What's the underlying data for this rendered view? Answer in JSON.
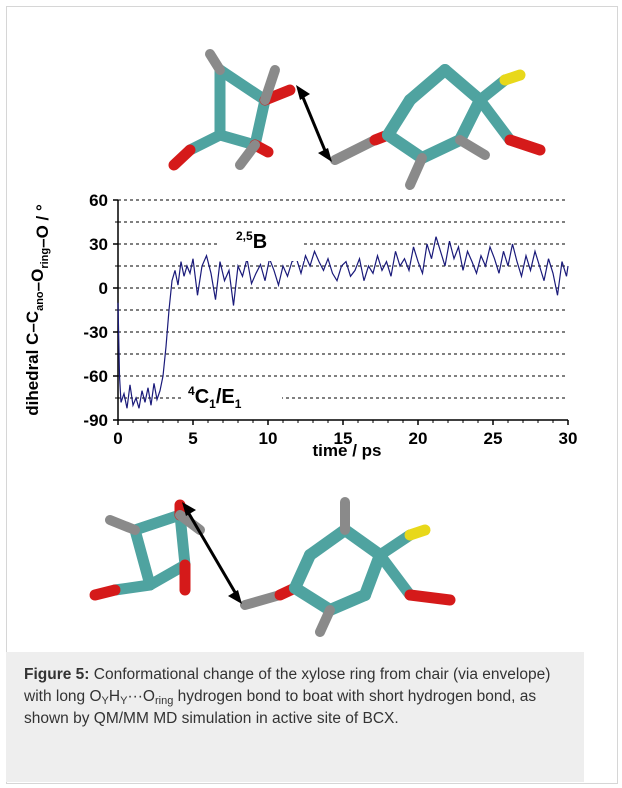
{
  "figure": {
    "caption_label": "Figure 5:",
    "caption_parts": {
      "t1": " Conformational change of the xylose ring from chair (via envelope) with long O",
      "s1": "Y",
      "t2": "H",
      "s2": "Y",
      "t3": "···O",
      "s3": "ring",
      "t4": " hydrogen bond to boat with short hydrogen bond, as shown by QM/MM MD simulation in active site of BCX."
    }
  },
  "chart_data": {
    "type": "line",
    "xlabel": "time / ps",
    "ylabel": "dihedral C–C_ano–O_ring–O / °",
    "xlim": [
      0,
      30
    ],
    "ylim": [
      -90,
      60
    ],
    "xticks": [
      0,
      5,
      10,
      15,
      20,
      25,
      30
    ],
    "yticks": [
      60,
      30,
      0,
      -30,
      -60,
      -90
    ],
    "grid_dashed_y": [
      60,
      45,
      30,
      15,
      0,
      -15,
      -30,
      -45,
      -60,
      -75,
      -90
    ],
    "annotations": [
      {
        "text": "2,5B",
        "at": "upper"
      },
      {
        "text": "4C1/E1",
        "at": "lower"
      }
    ],
    "series": [
      {
        "x": [
          0,
          0.1,
          0.2,
          0.4,
          0.6,
          0.8,
          1.0,
          1.2,
          1.4,
          1.6,
          1.8,
          2.0,
          2.2,
          2.4,
          2.6,
          2.8,
          3.0,
          3.2,
          3.4,
          3.6,
          3.8,
          4.0,
          4.2,
          4.4,
          4.6,
          4.8,
          5.0,
          5.3,
          5.6,
          5.9,
          6.2,
          6.5,
          6.8,
          7.1,
          7.4,
          7.7,
          8.0,
          8.3,
          8.6,
          8.9,
          9.2,
          9.5,
          9.8,
          10.1,
          10.4,
          10.7,
          11.0,
          11.3,
          11.6,
          11.9,
          12.2,
          12.5,
          12.8,
          13.1,
          13.4,
          13.7,
          14.0,
          14.3,
          14.6,
          14.9,
          15.2,
          15.5,
          15.8,
          16.1,
          16.4,
          16.7,
          17.0,
          17.3,
          17.6,
          17.9,
          18.2,
          18.5,
          18.8,
          19.1,
          19.4,
          19.7,
          20.0,
          20.3,
          20.6,
          20.9,
          21.2,
          21.5,
          21.8,
          22.1,
          22.4,
          22.7,
          23.0,
          23.3,
          23.6,
          23.9,
          24.2,
          24.5,
          24.8,
          25.1,
          25.4,
          25.7,
          26.0,
          26.3,
          26.6,
          26.9,
          27.2,
          27.5,
          27.8,
          28.1,
          28.4,
          28.7,
          29.0,
          29.3,
          29.6,
          29.9,
          30.0
        ],
        "values": [
          -10,
          -60,
          -78,
          -72,
          -82,
          -66,
          -80,
          -75,
          -82,
          -70,
          -78,
          -68,
          -80,
          -65,
          -76,
          -70,
          -60,
          -40,
          -15,
          5,
          12,
          2,
          18,
          8,
          15,
          10,
          20,
          -5,
          15,
          22,
          10,
          -8,
          18,
          5,
          12,
          -12,
          15,
          8,
          20,
          3,
          10,
          16,
          5,
          20,
          12,
          2,
          15,
          8,
          18,
          20,
          10,
          22,
          15,
          25,
          18,
          12,
          20,
          10,
          5,
          15,
          18,
          8,
          12,
          20,
          5,
          15,
          10,
          22,
          12,
          18,
          8,
          25,
          15,
          20,
          12,
          28,
          18,
          10,
          30,
          20,
          35,
          25,
          15,
          32,
          20,
          28,
          12,
          25,
          18,
          10,
          22,
          15,
          28,
          20,
          10,
          25,
          15,
          30,
          18,
          8,
          22,
          12,
          25,
          15,
          5,
          20,
          10,
          -5,
          18,
          8,
          15
        ]
      }
    ]
  }
}
